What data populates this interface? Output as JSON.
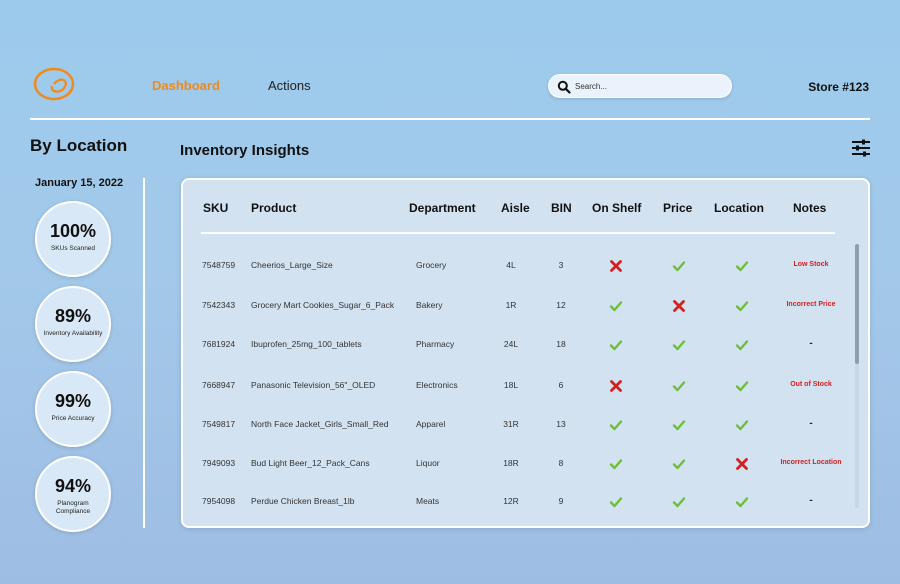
{
  "nav": {
    "items": [
      {
        "label": "Dashboard",
        "active": true
      },
      {
        "label": "Actions",
        "active": false
      }
    ],
    "search_placeholder": "Search...",
    "store": "Store #123"
  },
  "sidebar": {
    "title": "By Location",
    "date": "January 15, 2022",
    "metrics": [
      {
        "value": "100%",
        "label": "SKUs Scanned"
      },
      {
        "value": "89%",
        "label": "Inventory Availability"
      },
      {
        "value": "99%",
        "label": "Price Accuracy"
      },
      {
        "value": "94%",
        "label": "Planogram Compliance"
      }
    ]
  },
  "panel": {
    "title": "Inventory Insights",
    "columns": [
      "SKU",
      "Product",
      "Department",
      "Aisle",
      "BIN",
      "On Shelf",
      "Price",
      "Location",
      "Notes"
    ],
    "rows": [
      {
        "sku": "7548759",
        "product": "Cheerios_Large_Size",
        "department": "Grocery",
        "aisle": "4L",
        "bin": "3",
        "on_shelf": false,
        "price": true,
        "location": true,
        "notes": "Low Stock"
      },
      {
        "sku": "7542343",
        "product": "Grocery Mart Cookies_Sugar_6_Pack",
        "department": "Bakery",
        "aisle": "1R",
        "bin": "12",
        "on_shelf": true,
        "price": false,
        "location": true,
        "notes": "Incorrect Price"
      },
      {
        "sku": "7681924",
        "product": "Ibuprofen_25mg_100_tablets",
        "department": "Pharmacy",
        "aisle": "24L",
        "bin": "18",
        "on_shelf": true,
        "price": true,
        "location": true,
        "notes": "-"
      },
      {
        "sku": "7668947",
        "product": "Panasonic Television_56\"_OLED",
        "department": "Electronics",
        "aisle": "18L",
        "bin": "6",
        "on_shelf": false,
        "price": true,
        "location": true,
        "notes": "Out of Stock"
      },
      {
        "sku": "7549817",
        "product": "North Face Jacket_Girls_Small_Red",
        "department": "Apparel",
        "aisle": "31R",
        "bin": "13",
        "on_shelf": true,
        "price": true,
        "location": true,
        "notes": "-"
      },
      {
        "sku": "7949093",
        "product": "Bud Light Beer_12_Pack_Cans",
        "department": "Liquor",
        "aisle": "18R",
        "bin": "8",
        "on_shelf": true,
        "price": true,
        "location": false,
        "notes": "Incorrect Location"
      },
      {
        "sku": "7954098",
        "product": "Perdue Chicken Breast_1lb",
        "department": "Meats",
        "aisle": "12R",
        "bin": "9",
        "on_shelf": true,
        "price": true,
        "location": true,
        "notes": "-"
      }
    ]
  },
  "colors": {
    "accent": "#f08a1c",
    "check": "#6cbf3a",
    "cross": "#d42020",
    "note": "#d42020"
  },
  "icons": {
    "logo": "swirl-logo-icon",
    "search": "search-icon",
    "filter": "sliders-icon",
    "ok": "check-icon",
    "fail": "cross-icon"
  }
}
